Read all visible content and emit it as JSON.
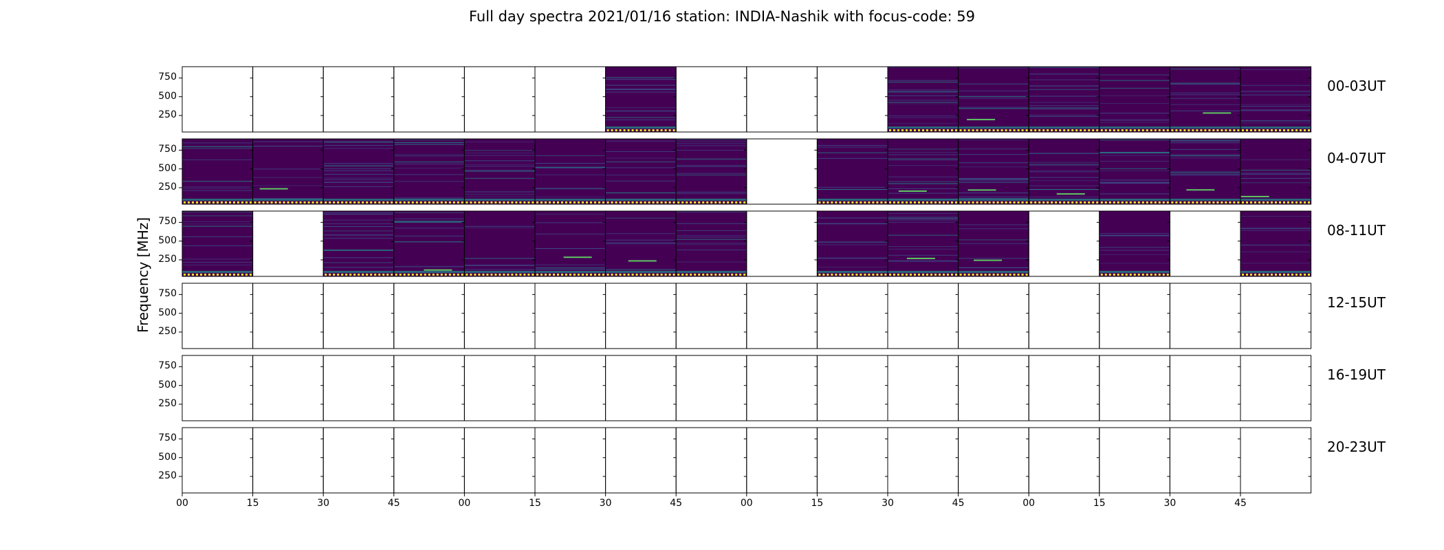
{
  "chart_data": {
    "type": "heatmap",
    "title": "Full day spectra 2021/01/16 station: INDIA-Nashik with focus-code: 59",
    "ylabel": "Frequency [MHz]",
    "xlabel": "",
    "yticks": [
      "250",
      "500",
      "750"
    ],
    "xticks": [
      "00",
      "15",
      "30",
      "45",
      "00",
      "15",
      "30",
      "45",
      "00",
      "15",
      "30",
      "45",
      "00",
      "15",
      "30",
      "45"
    ],
    "rows": [
      {
        "label": "00-03UT",
        "present": [
          0,
          0,
          0,
          0,
          0,
          0,
          1,
          0,
          0,
          0,
          1,
          1,
          1,
          1,
          1,
          1
        ]
      },
      {
        "label": "04-07UT",
        "present": [
          1,
          1,
          1,
          1,
          1,
          1,
          1,
          1,
          0,
          1,
          1,
          1,
          1,
          1,
          1,
          1
        ]
      },
      {
        "label": "08-11UT",
        "present": [
          1,
          0,
          1,
          1,
          1,
          1,
          1,
          1,
          0,
          1,
          1,
          1,
          0,
          1,
          0,
          1
        ]
      },
      {
        "label": "12-15UT",
        "present": [
          0,
          0,
          0,
          0,
          0,
          0,
          0,
          0,
          0,
          0,
          0,
          0,
          0,
          0,
          0,
          0
        ]
      },
      {
        "label": "16-19UT",
        "present": [
          0,
          0,
          0,
          0,
          0,
          0,
          0,
          0,
          0,
          0,
          0,
          0,
          0,
          0,
          0,
          0
        ]
      },
      {
        "label": "20-23UT",
        "present": [
          0,
          0,
          0,
          0,
          0,
          0,
          0,
          0,
          0,
          0,
          0,
          0,
          0,
          0,
          0,
          0
        ]
      }
    ],
    "colors": {
      "background": "#440154",
      "low": "#3b528b",
      "mid": "#21918c",
      "high": "#5ec962",
      "peak": "#fde725"
    }
  }
}
